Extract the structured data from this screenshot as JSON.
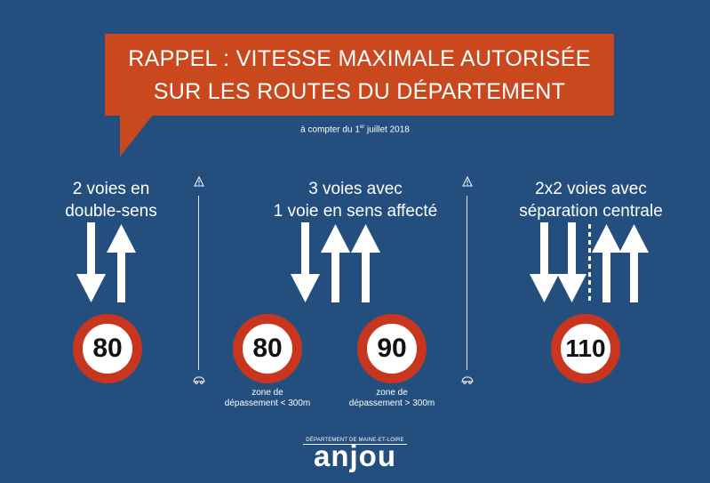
{
  "header": {
    "line1": "RAPPEL : VITESSE MAXIMALE AUTORISÉE",
    "line2": "SUR LES ROUTES DU DÉPARTEMENT",
    "date_prefix": "à compter du 1",
    "date_sup": "er",
    "date_suffix": " juillet 2018",
    "bubble_color": "#c9481e"
  },
  "sections": [
    {
      "title_line1": "2 voies en",
      "title_line2": "double-sens",
      "signs": [
        {
          "value": "80",
          "note_line1": "",
          "note_line2": ""
        }
      ]
    },
    {
      "title_line1": "3 voies avec",
      "title_line2": "1 voie en sens affecté",
      "signs": [
        {
          "value": "80",
          "note_line1": "zone de",
          "note_line2": "dépassement < 300m"
        },
        {
          "value": "90",
          "note_line1": "zone de",
          "note_line2": "dépassement > 300m"
        }
      ]
    },
    {
      "title_line1": "2x2 voies avec",
      "title_line2": "séparation centrale",
      "signs": [
        {
          "value": "110",
          "note_line1": "",
          "note_line2": ""
        }
      ]
    }
  ],
  "icons": {
    "warning": "warning-triangle-icon",
    "car": "car-icon",
    "arrow_up": "arrow-up-icon",
    "arrow_down": "arrow-down-icon"
  },
  "logo": {
    "top": "DÉPARTEMENT DE MAINE-ET-LOIRE",
    "word": "anjou"
  },
  "colors": {
    "background": "#234e7e",
    "sign_border": "#c8361f",
    "sign_text": "#111111"
  }
}
